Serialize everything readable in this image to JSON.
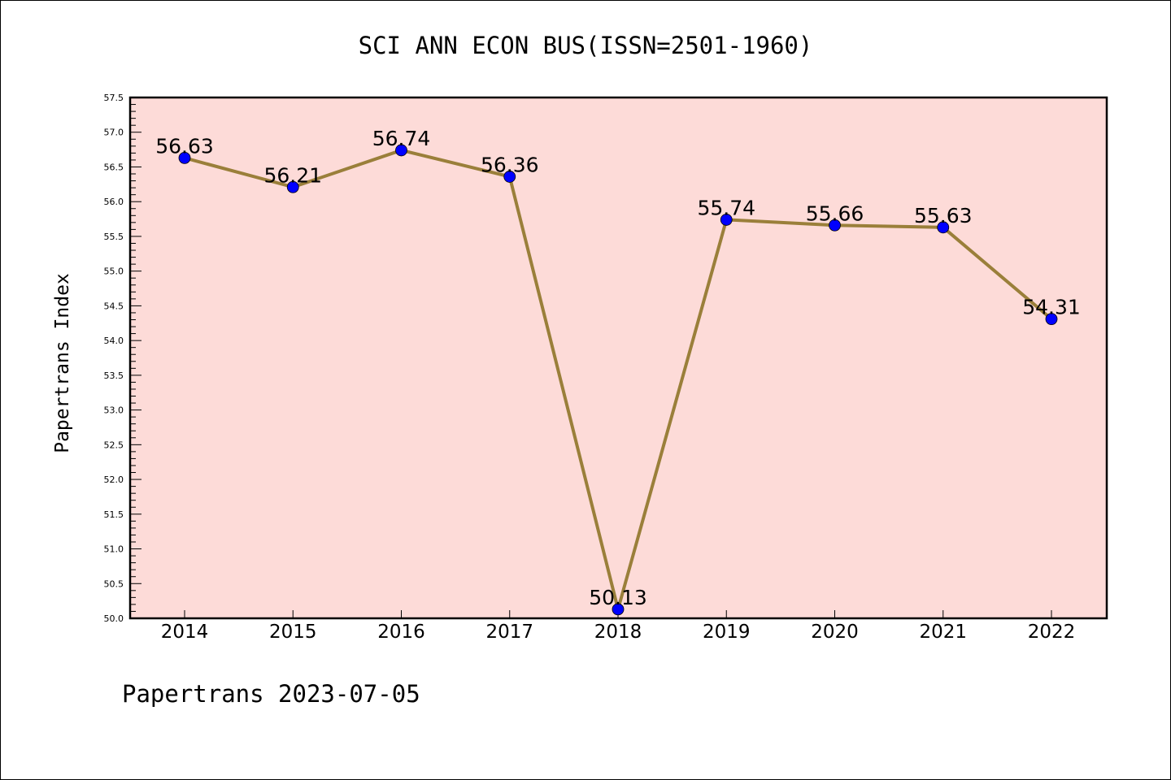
{
  "title": "SCI ANN ECON BUS(ISSN=2501-1960)",
  "ylabel": "Papertrans Index",
  "footer": "Papertrans 2023-07-05",
  "colors": {
    "plot_background": "#fddbd8",
    "line": "#9a7f3a",
    "marker": "#0000ff"
  },
  "chart_data": {
    "type": "line",
    "title": "SCI ANN ECON BUS(ISSN=2501-1960)",
    "xlabel": "",
    "ylabel": "Papertrans Index",
    "categories": [
      "2014",
      "2015",
      "2016",
      "2017",
      "2018",
      "2019",
      "2020",
      "2021",
      "2022"
    ],
    "values": [
      56.63,
      56.21,
      56.74,
      56.36,
      50.13,
      55.74,
      55.66,
      55.63,
      54.31
    ],
    "data_labels": [
      "56.63",
      "56.21",
      "56.74",
      "56.36",
      "50.13",
      "55.74",
      "55.66",
      "55.63",
      "54.31"
    ],
    "ylim": [
      50.0,
      57.5
    ],
    "yticks": [
      "50.0",
      "50.5",
      "51.0",
      "51.5",
      "52.0",
      "52.5",
      "53.0",
      "53.5",
      "54.0",
      "54.5",
      "55.0",
      "55.5",
      "56.0",
      "56.5",
      "57.0",
      "57.5"
    ],
    "grid": false,
    "legend": "none"
  }
}
